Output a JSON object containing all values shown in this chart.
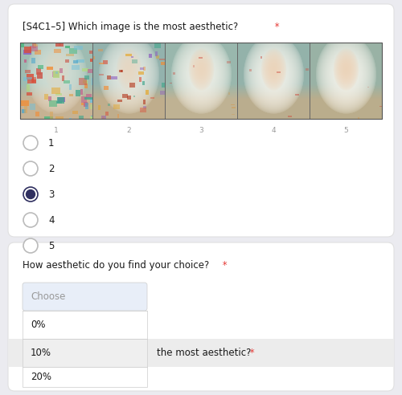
{
  "bg_color": "#ebebf0",
  "card_color": "#ffffff",
  "question1": "[S4C1–5] Which image is the most aesthetic?",
  "question1_star": " *",
  "question2": "How aesthetic do you find your choice?",
  "question2_star": " *",
  "radio_options": [
    "1",
    "2",
    "3",
    "4",
    "5"
  ],
  "selected_radio": 2,
  "dropdown_placeholder": "Choose",
  "dropdown_items": [
    "0%",
    "10%",
    "20%"
  ],
  "next_question_partial": "the most aesthetic?",
  "next_question_star": " *",
  "text_color": "#1a1a1a",
  "gray_color": "#999999",
  "red_color": "#e53935",
  "radio_border": "#bbbbbb",
  "radio_selected_fill": "#303060",
  "radio_selected_border": "#303060",
  "dropdown_bg_choose": "#e8eef8",
  "dropdown_bg_hover": "#efefef",
  "dropdown_bg_normal": "#ffffff",
  "dropdown_border": "#cccccc",
  "card_border": "#e0e0e0",
  "font_size_question": 8.5,
  "font_size_radio": 8.5,
  "font_size_dropdown": 8.5,
  "font_size_image_label": 6.5,
  "card1_shadow": "#dddddd"
}
